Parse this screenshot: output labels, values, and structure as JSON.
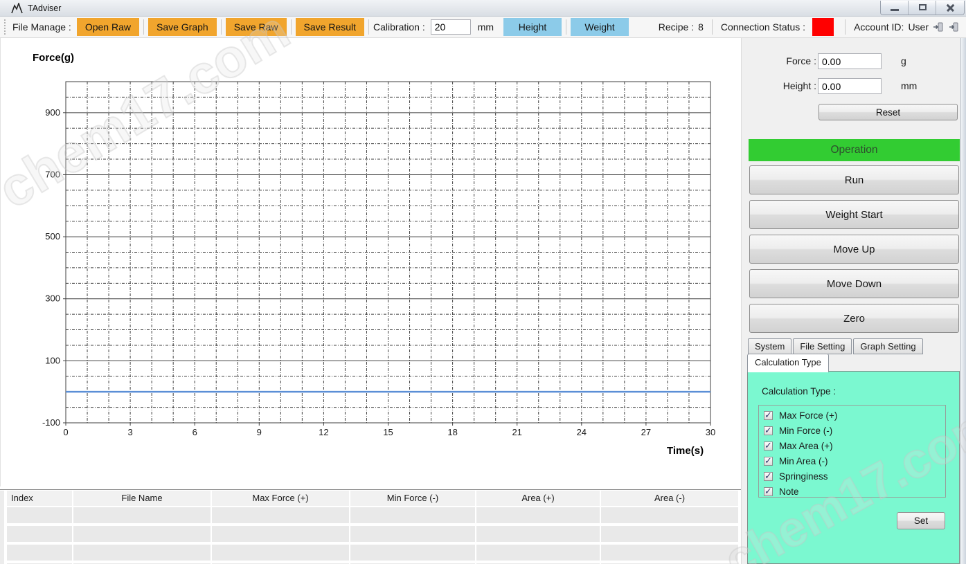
{
  "window": {
    "title": "TAdviser"
  },
  "toolbar": {
    "file_manage_label": "File Manage :",
    "buttons": [
      {
        "label": "Open Raw"
      },
      {
        "label": "Save Graph"
      },
      {
        "label": "Save Raw"
      },
      {
        "label": "Save Result"
      }
    ],
    "calibration_label": "Calibration :",
    "calibration_value": "20",
    "calibration_unit": "mm",
    "height_button": "Height",
    "weight_button": "Weight",
    "recipe_label": "Recipe :",
    "recipe_value": "8",
    "connection_label": "Connection Status :",
    "connection_status_color": "#ff0000",
    "account_label": "Account ID:",
    "account_user": "User",
    "accent_orange": "#f1a52d",
    "accent_blue": "#8ccbe9"
  },
  "readouts": {
    "force_label": "Force :",
    "force_value": "0.00",
    "force_unit": "g",
    "height_label": "Height :",
    "height_value": "0.00",
    "height_unit": "mm",
    "reset_button": "Reset"
  },
  "operation": {
    "header": "Operation",
    "header_color": "#32cc32",
    "buttons": [
      "Run",
      "Weight Start",
      "Move Up",
      "Move Down",
      "Zero"
    ]
  },
  "settings_tabs": {
    "tabs": [
      "System",
      "File Setting",
      "Graph Setting"
    ],
    "active_tab": "Calculation Type"
  },
  "calculation_panel": {
    "panel_color": "#7bf8d0",
    "label": "Calculation Type :",
    "options": [
      {
        "label": "Max Force (+)",
        "checked": true
      },
      {
        "label": "Min Force (-)",
        "checked": true
      },
      {
        "label": "Max Area (+)",
        "checked": true
      },
      {
        "label": "Min Area (-)",
        "checked": true
      },
      {
        "label": "Springiness",
        "checked": true
      },
      {
        "label": "Note",
        "checked": true
      }
    ],
    "set_button": "Set"
  },
  "results_table": {
    "columns": [
      "Index",
      "File Name",
      "Max Force (+)",
      "Min Force (-)",
      "Area (+)",
      "Area (-)"
    ],
    "rows": [
      [
        "",
        "",
        "",
        "",
        "",
        ""
      ],
      [
        "",
        "",
        "",
        "",
        "",
        ""
      ],
      [
        "",
        "",
        "",
        "",
        "",
        ""
      ],
      [
        "",
        "",
        "",
        "",
        "",
        ""
      ]
    ]
  },
  "chart_data": {
    "type": "line",
    "ylabel": "Force(g)",
    "xlabel": "Time(s)",
    "x_min": 0,
    "x_max": 30,
    "x_ticks": [
      0,
      3,
      6,
      9,
      12,
      15,
      18,
      21,
      24,
      27,
      30
    ],
    "x_minor_step": 1,
    "y_min": -100,
    "y_max": 1000,
    "y_ticks": [
      -100,
      100,
      300,
      500,
      700,
      900
    ],
    "y_minor_step": 50,
    "grid": true,
    "legend": false,
    "series": [
      {
        "name": "Force",
        "color": "#5b8fd6",
        "points": [
          [
            0,
            0
          ],
          [
            30,
            0
          ]
        ]
      }
    ]
  },
  "watermark": {
    "text": "chem17.com"
  }
}
